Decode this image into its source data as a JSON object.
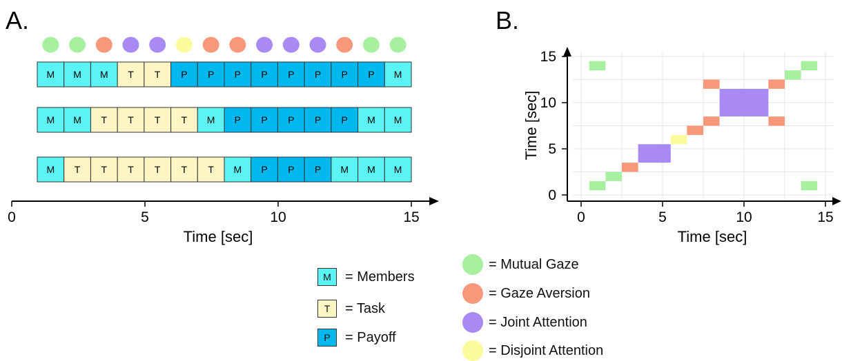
{
  "panel_a": {
    "label": "A.",
    "xlabel": "Time [sec]",
    "x_ticks": [
      "0",
      "5",
      "10",
      "15"
    ],
    "gaze_sequence": [
      "mutual",
      "mutual",
      "aversion",
      "joint",
      "joint",
      "disjoint",
      "aversion",
      "aversion",
      "joint",
      "joint",
      "joint",
      "aversion",
      "mutual",
      "mutual"
    ],
    "rows": [
      [
        "M",
        "M",
        "M",
        "T",
        "T",
        "P",
        "P",
        "P",
        "P",
        "P",
        "P",
        "P",
        "P",
        "M"
      ],
      [
        "M",
        "M",
        "T",
        "T",
        "T",
        "T",
        "M",
        "P",
        "P",
        "P",
        "P",
        "P",
        "M",
        "M"
      ],
      [
        "M",
        "T",
        "T",
        "T",
        "T",
        "T",
        "T",
        "M",
        "P",
        "P",
        "P",
        "M",
        "M",
        "M"
      ]
    ]
  },
  "panel_b": {
    "label": "B.",
    "xlabel": "Time [sec]",
    "ylabel": "Time [sec]",
    "x_ticks": [
      "0",
      "5",
      "10",
      "15"
    ],
    "y_ticks": [
      "0",
      "5",
      "10",
      "15"
    ]
  },
  "chart_data": {
    "type": "heatmap",
    "title": "",
    "xlabel": "Time [sec]",
    "ylabel": "Time [sec]",
    "xlim": [
      0,
      15
    ],
    "ylim": [
      0,
      15
    ],
    "grid": true,
    "cells": [
      {
        "x": [
          0.5,
          1.5
        ],
        "y": [
          0.5,
          1.5
        ],
        "state": "mutual"
      },
      {
        "x": [
          1.5,
          2.5
        ],
        "y": [
          1.5,
          2.5
        ],
        "state": "mutual"
      },
      {
        "x": [
          2.5,
          3.5
        ],
        "y": [
          2.5,
          3.5
        ],
        "state": "aversion"
      },
      {
        "x": [
          3.5,
          5.5
        ],
        "y": [
          3.5,
          5.5
        ],
        "state": "joint"
      },
      {
        "x": [
          5.5,
          6.5
        ],
        "y": [
          5.5,
          6.5
        ],
        "state": "disjoint"
      },
      {
        "x": [
          6.5,
          7.5
        ],
        "y": [
          6.5,
          7.5
        ],
        "state": "aversion"
      },
      {
        "x": [
          7.5,
          8.5
        ],
        "y": [
          7.5,
          8.5
        ],
        "state": "aversion"
      },
      {
        "x": [
          7.5,
          8.5
        ],
        "y": [
          11.5,
          12.5
        ],
        "state": "aversion"
      },
      {
        "x": [
          8.5,
          11.5
        ],
        "y": [
          8.5,
          11.5
        ],
        "state": "joint"
      },
      {
        "x": [
          11.5,
          12.5
        ],
        "y": [
          7.5,
          8.5
        ],
        "state": "aversion"
      },
      {
        "x": [
          11.5,
          12.5
        ],
        "y": [
          11.5,
          12.5
        ],
        "state": "aversion"
      },
      {
        "x": [
          12.5,
          13.5
        ],
        "y": [
          12.5,
          13.5
        ],
        "state": "mutual"
      },
      {
        "x": [
          13.5,
          14.5
        ],
        "y": [
          13.5,
          14.5
        ],
        "state": "mutual"
      },
      {
        "x": [
          13.5,
          14.5
        ],
        "y": [
          0.5,
          1.5
        ],
        "state": "mutual"
      },
      {
        "x": [
          0.5,
          1.5
        ],
        "y": [
          13.5,
          14.5
        ],
        "state": "mutual"
      }
    ]
  },
  "colors": {
    "mutual": "#a6f0a0",
    "aversion": "#f7987a",
    "joint": "#a98af2",
    "disjoint": "#fbfb9c",
    "M": "#5bf3f3",
    "T": "#fdf5c4",
    "P": "#00b8ee",
    "grid": "#e4e4e4"
  },
  "legend_boxes": [
    {
      "key": "M",
      "letter": "M",
      "text": "= Members"
    },
    {
      "key": "T",
      "letter": "T",
      "text": "= Task"
    },
    {
      "key": "P",
      "letter": "P",
      "text": "= Payoff"
    }
  ],
  "legend_dots": [
    {
      "key": "mutual",
      "text": "= Mutual Gaze"
    },
    {
      "key": "aversion",
      "text": "= Gaze Aversion"
    },
    {
      "key": "joint",
      "text": "= Joint Attention"
    },
    {
      "key": "disjoint",
      "text": "= Disjoint Attention"
    }
  ]
}
